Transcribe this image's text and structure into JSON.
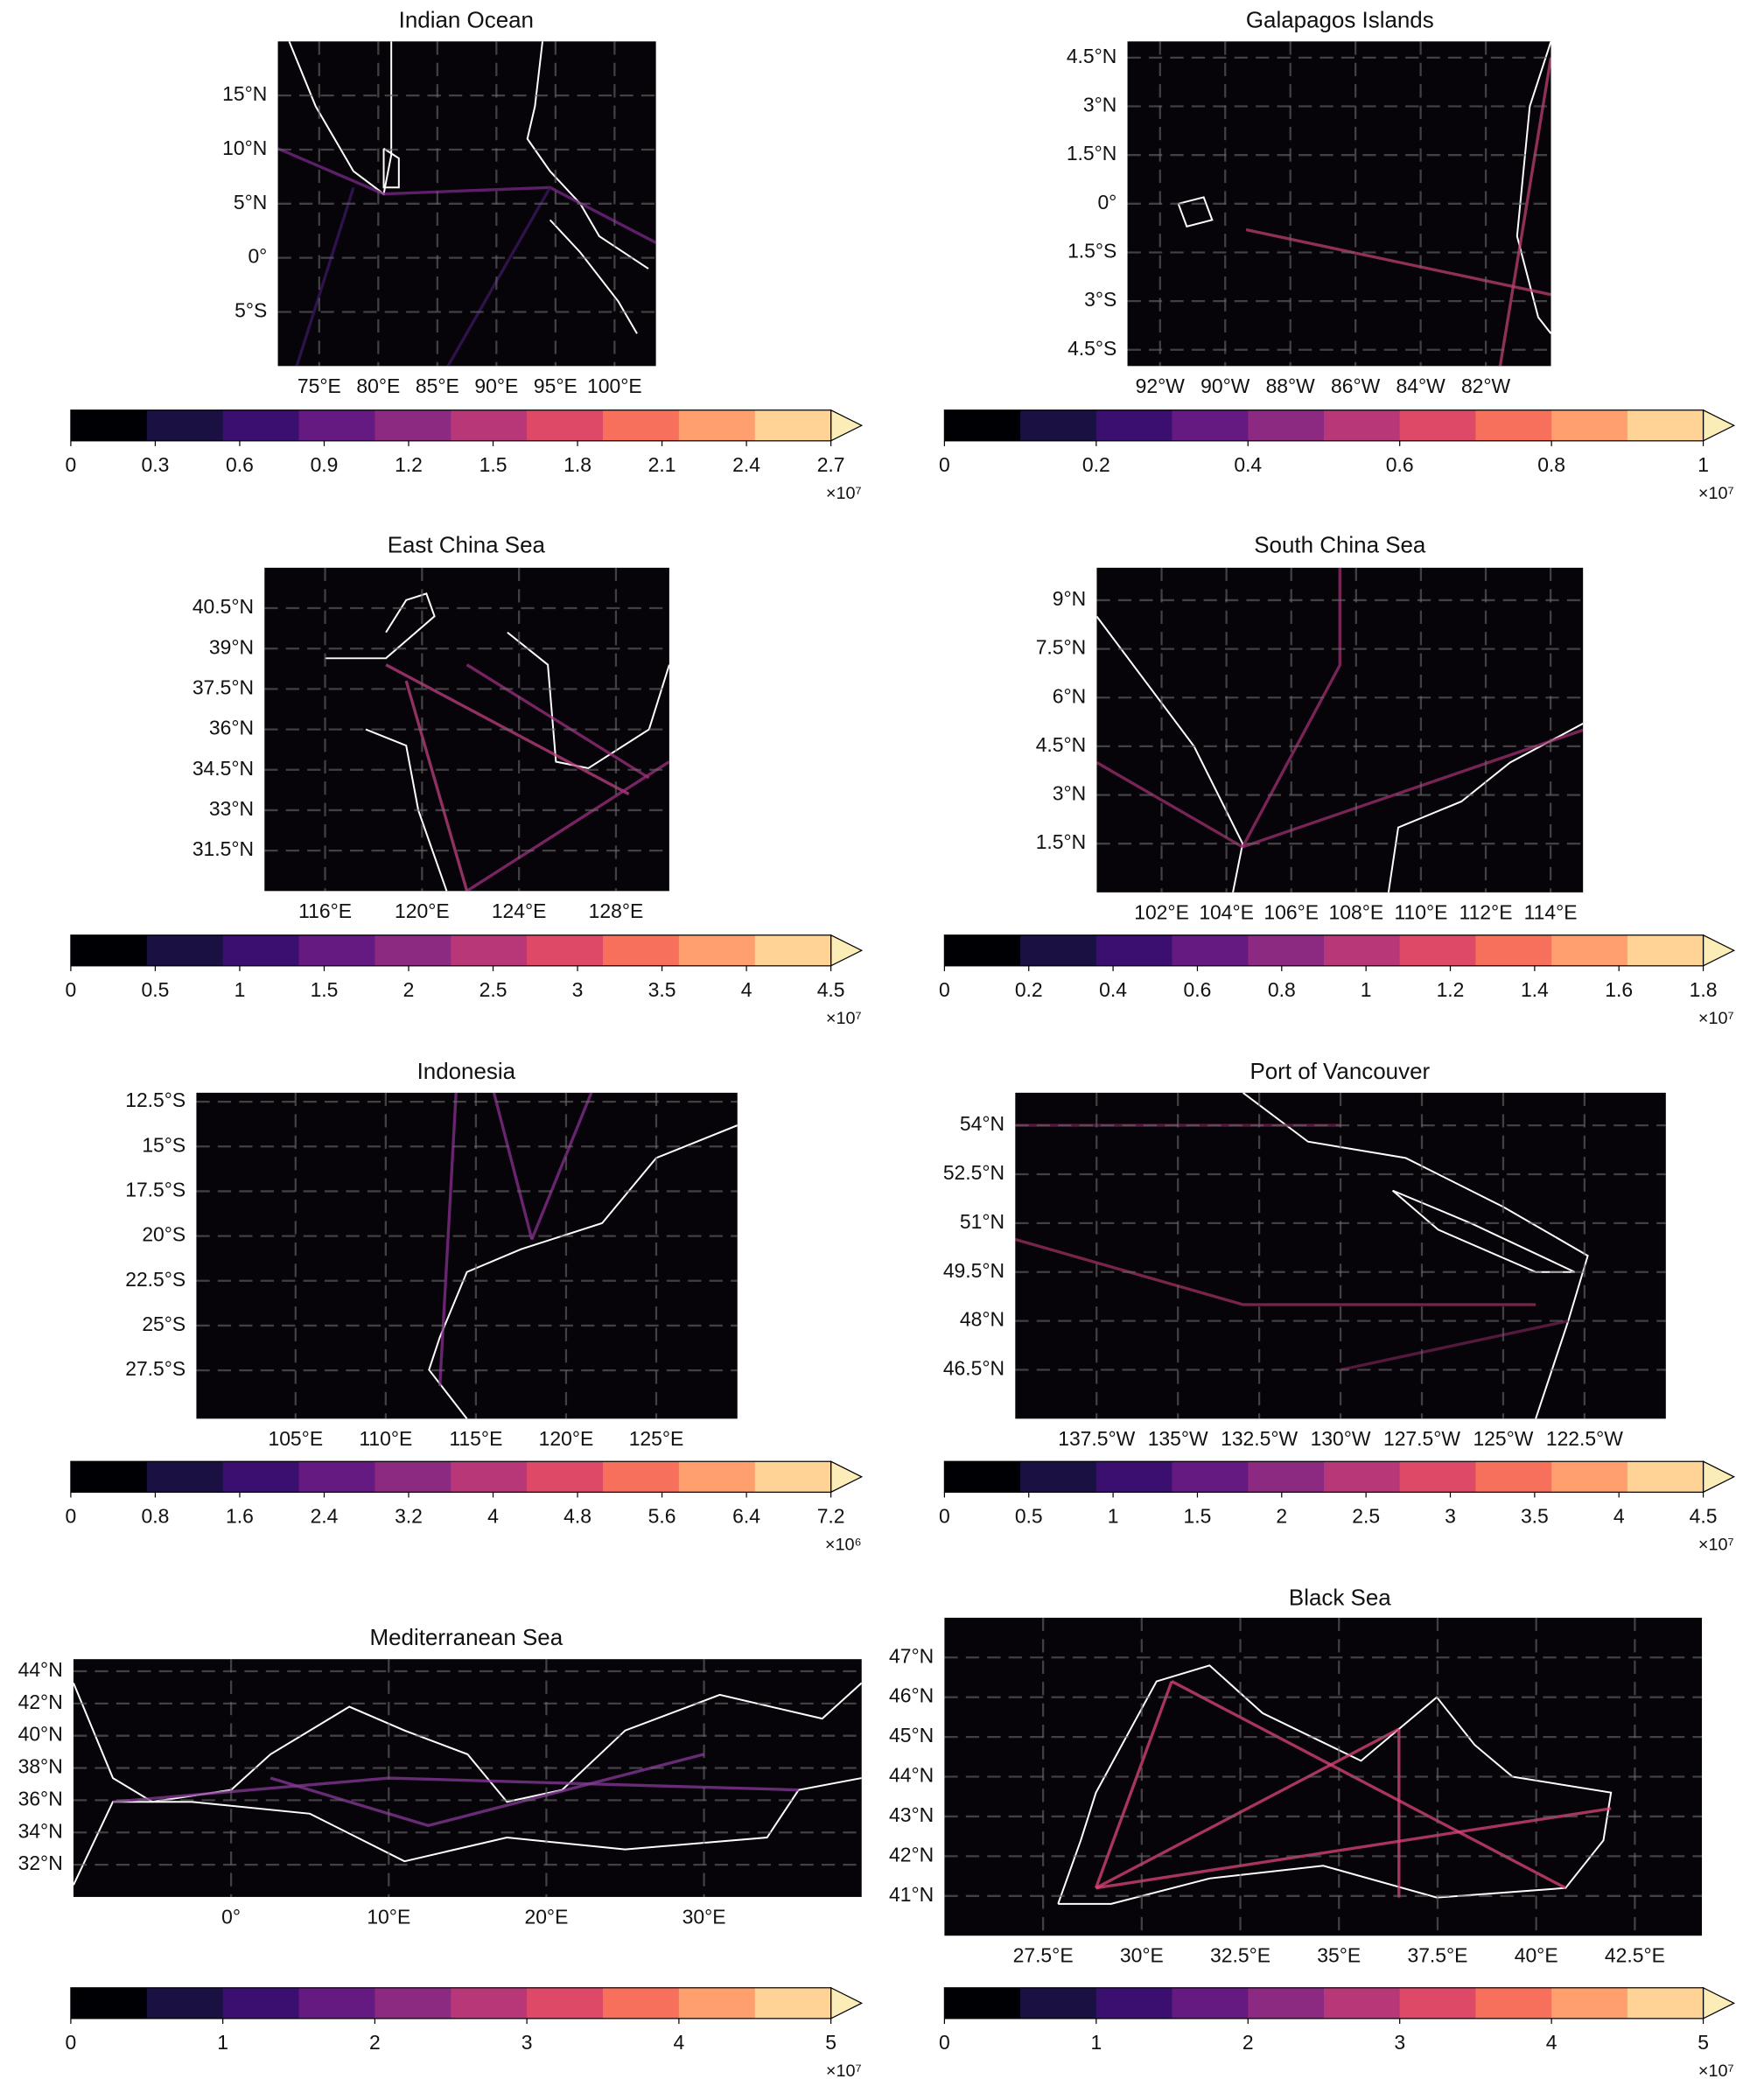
{
  "chart_data": [
    {
      "type": "map",
      "title": "Indian Ocean",
      "xlim": [
        71.5,
        103.5
      ],
      "ylim": [
        -10,
        20
      ],
      "grid": true,
      "xticks": [
        {
          "value": 75,
          "label": "75°E"
        },
        {
          "value": 80,
          "label": "80°E"
        },
        {
          "value": 85,
          "label": "85°E"
        },
        {
          "value": 90,
          "label": "90°E"
        },
        {
          "value": 95,
          "label": "95°E"
        },
        {
          "value": 100,
          "label": "100°E"
        }
      ],
      "yticks": [
        {
          "value": 15,
          "label": "15°N"
        },
        {
          "value": 10,
          "label": "10°N"
        },
        {
          "value": 5,
          "label": "5°N"
        },
        {
          "value": 0,
          "label": "0°"
        },
        {
          "value": -5,
          "label": "5°S"
        }
      ],
      "colorbar": {
        "lim": [
          0,
          2.7
        ],
        "ticks": [
          0,
          0.3,
          0.6,
          0.9,
          1.2,
          1.5,
          1.8,
          2.1,
          2.4,
          2.7
        ],
        "scale_label": "×10⁷",
        "colors": [
          "#000004",
          "#1a1042",
          "#3b0f70",
          "#641a80",
          "#8c2981",
          "#b73779",
          "#de4968",
          "#f7705c",
          "#fe9f6d",
          "#fed395"
        ],
        "extend_color": "#fcecb8"
      }
    },
    {
      "type": "map",
      "title": "Galapagos Islands",
      "xlim": [
        -93,
        -80
      ],
      "ylim": [
        -5,
        5
      ],
      "grid": true,
      "xticks": [
        {
          "value": -92,
          "label": "92°W"
        },
        {
          "value": -90,
          "label": "90°W"
        },
        {
          "value": -88,
          "label": "88°W"
        },
        {
          "value": -86,
          "label": "86°W"
        },
        {
          "value": -84,
          "label": "84°W"
        },
        {
          "value": -82,
          "label": "82°W"
        }
      ],
      "yticks": [
        {
          "value": 4.5,
          "label": "4.5°N"
        },
        {
          "value": 3,
          "label": "3°N"
        },
        {
          "value": 1.5,
          "label": "1.5°N"
        },
        {
          "value": 0,
          "label": "0°"
        },
        {
          "value": -1.5,
          "label": "1.5°S"
        },
        {
          "value": -3,
          "label": "3°S"
        },
        {
          "value": -4.5,
          "label": "4.5°S"
        }
      ],
      "colorbar": {
        "lim": [
          0,
          1
        ],
        "ticks": [
          0,
          0.2,
          0.4,
          0.6,
          0.8,
          1
        ],
        "scale_label": "×10⁷",
        "colors": [
          "#000004",
          "#1a1042",
          "#3b0f70",
          "#641a80",
          "#8c2981",
          "#b73779",
          "#de4968",
          "#f7705c",
          "#fe9f6d",
          "#fed395"
        ],
        "extend_color": "#fcecb8"
      }
    },
    {
      "type": "map",
      "title": "East China Sea",
      "xlim": [
        113.5,
        130.2
      ],
      "ylim": [
        30,
        42
      ],
      "grid": true,
      "xticks": [
        {
          "value": 116,
          "label": "116°E"
        },
        {
          "value": 120,
          "label": "120°E"
        },
        {
          "value": 124,
          "label": "124°E"
        },
        {
          "value": 128,
          "label": "128°E"
        }
      ],
      "yticks": [
        {
          "value": 40.5,
          "label": "40.5°N"
        },
        {
          "value": 39,
          "label": "39°N"
        },
        {
          "value": 37.5,
          "label": "37.5°N"
        },
        {
          "value": 36,
          "label": "36°N"
        },
        {
          "value": 34.5,
          "label": "34.5°N"
        },
        {
          "value": 33,
          "label": "33°N"
        },
        {
          "value": 31.5,
          "label": "31.5°N"
        }
      ],
      "colorbar": {
        "lim": [
          0,
          4.5
        ],
        "ticks": [
          0,
          0.5,
          1,
          1.5,
          2,
          2.5,
          3,
          3.5,
          4,
          4.5
        ],
        "scale_label": "×10⁷",
        "colors": [
          "#000004",
          "#1a1042",
          "#3b0f70",
          "#641a80",
          "#8c2981",
          "#b73779",
          "#de4968",
          "#f7705c",
          "#fe9f6d",
          "#fed395"
        ],
        "extend_color": "#fcecb8"
      }
    },
    {
      "type": "map",
      "title": "South China Sea",
      "xlim": [
        100,
        115
      ],
      "ylim": [
        0,
        10
      ],
      "grid": true,
      "xticks": [
        {
          "value": 102,
          "label": "102°E"
        },
        {
          "value": 104,
          "label": "104°E"
        },
        {
          "value": 106,
          "label": "106°E"
        },
        {
          "value": 108,
          "label": "108°E"
        },
        {
          "value": 110,
          "label": "110°E"
        },
        {
          "value": 112,
          "label": "112°E"
        },
        {
          "value": 114,
          "label": "114°E"
        }
      ],
      "yticks": [
        {
          "value": 9,
          "label": "9°N"
        },
        {
          "value": 7.5,
          "label": "7.5°N"
        },
        {
          "value": 6,
          "label": "6°N"
        },
        {
          "value": 4.5,
          "label": "4.5°N"
        },
        {
          "value": 3,
          "label": "3°N"
        },
        {
          "value": 1.5,
          "label": "1.5°N"
        }
      ],
      "colorbar": {
        "lim": [
          0,
          1.8
        ],
        "ticks": [
          0,
          0.2,
          0.4,
          0.6,
          0.8,
          1,
          1.2,
          1.4,
          1.6,
          1.8
        ],
        "scale_label": "×10⁷",
        "colors": [
          "#000004",
          "#1a1042",
          "#3b0f70",
          "#641a80",
          "#8c2981",
          "#b73779",
          "#de4968",
          "#f7705c",
          "#fe9f6d",
          "#fed395"
        ],
        "extend_color": "#fcecb8"
      }
    },
    {
      "type": "map",
      "title": "Indonesia",
      "xlim": [
        99.5,
        129.5
      ],
      "ylim": [
        -30.2,
        -12
      ],
      "grid": true,
      "xticks": [
        {
          "value": 105,
          "label": "105°E"
        },
        {
          "value": 110,
          "label": "110°E"
        },
        {
          "value": 115,
          "label": "115°E"
        },
        {
          "value": 120,
          "label": "120°E"
        },
        {
          "value": 125,
          "label": "125°E"
        }
      ],
      "yticks": [
        {
          "value": -12.5,
          "label": "12.5°S"
        },
        {
          "value": -15,
          "label": "15°S"
        },
        {
          "value": -17.5,
          "label": "17.5°S"
        },
        {
          "value": -20,
          "label": "20°S"
        },
        {
          "value": -22.5,
          "label": "22.5°S"
        },
        {
          "value": -25,
          "label": "25°S"
        },
        {
          "value": -27.5,
          "label": "27.5°S"
        }
      ],
      "colorbar": {
        "lim": [
          0,
          7.2
        ],
        "ticks": [
          0,
          0.8,
          1.6,
          2.4,
          3.2,
          4,
          4.8,
          5.6,
          6.4,
          7.2
        ],
        "scale_label": "×10⁶",
        "colors": [
          "#000004",
          "#1a1042",
          "#3b0f70",
          "#641a80",
          "#8c2981",
          "#b73779",
          "#de4968",
          "#f7705c",
          "#fe9f6d",
          "#fed395"
        ],
        "extend_color": "#fcecb8"
      }
    },
    {
      "type": "map",
      "title": "Port of Vancouver",
      "xlim": [
        -140,
        -120
      ],
      "ylim": [
        45,
        55
      ],
      "grid": true,
      "xticks": [
        {
          "value": -137.5,
          "label": "137.5°W"
        },
        {
          "value": -135,
          "label": "135°W"
        },
        {
          "value": -132.5,
          "label": "132.5°W"
        },
        {
          "value": -130,
          "label": "130°W"
        },
        {
          "value": -127.5,
          "label": "127.5°W"
        },
        {
          "value": -125,
          "label": "125°W"
        },
        {
          "value": -122.5,
          "label": "122.5°W"
        }
      ],
      "yticks": [
        {
          "value": 54,
          "label": "54°N"
        },
        {
          "value": 52.5,
          "label": "52.5°N"
        },
        {
          "value": 51,
          "label": "51°N"
        },
        {
          "value": 49.5,
          "label": "49.5°N"
        },
        {
          "value": 48,
          "label": "48°N"
        },
        {
          "value": 46.5,
          "label": "46.5°N"
        }
      ],
      "colorbar": {
        "lim": [
          0,
          4.5
        ],
        "ticks": [
          0,
          0.5,
          1,
          1.5,
          2,
          2.5,
          3,
          3.5,
          4,
          4.5
        ],
        "scale_label": "×10⁷",
        "colors": [
          "#000004",
          "#1a1042",
          "#3b0f70",
          "#641a80",
          "#8c2981",
          "#b73779",
          "#de4968",
          "#f7705c",
          "#fe9f6d",
          "#fed395"
        ],
        "extend_color": "#fcecb8"
      }
    },
    {
      "type": "map",
      "title": "Mediterranean Sea",
      "xlim": [
        -10,
        40
      ],
      "ylim": [
        30,
        44.75
      ],
      "grid": true,
      "xticks": [
        {
          "value": 0,
          "label": "0°"
        },
        {
          "value": 10,
          "label": "10°E"
        },
        {
          "value": 20,
          "label": "20°E"
        },
        {
          "value": 30,
          "label": "30°E"
        }
      ],
      "yticks": [
        {
          "value": 44,
          "label": "44°N"
        },
        {
          "value": 42,
          "label": "42°N"
        },
        {
          "value": 40,
          "label": "40°N"
        },
        {
          "value": 38,
          "label": "38°N"
        },
        {
          "value": 36,
          "label": "36°N"
        },
        {
          "value": 34,
          "label": "34°N"
        },
        {
          "value": 32,
          "label": "32°N"
        }
      ],
      "colorbar": {
        "lim": [
          0,
          5
        ],
        "ticks": [
          0,
          1,
          2,
          3,
          4,
          5
        ],
        "scale_label": "×10⁷",
        "colors": [
          "#000004",
          "#1a1042",
          "#3b0f70",
          "#641a80",
          "#8c2981",
          "#b73779",
          "#de4968",
          "#f7705c",
          "#fe9f6d",
          "#fed395"
        ],
        "extend_color": "#fcecb8"
      }
    },
    {
      "type": "map",
      "title": "Black Sea",
      "xlim": [
        25,
        44.2
      ],
      "ylim": [
        40,
        48
      ],
      "grid": true,
      "xticks": [
        {
          "value": 27.5,
          "label": "27.5°E"
        },
        {
          "value": 30,
          "label": "30°E"
        },
        {
          "value": 32.5,
          "label": "32.5°E"
        },
        {
          "value": 35,
          "label": "35°E"
        },
        {
          "value": 37.5,
          "label": "37.5°E"
        },
        {
          "value": 40,
          "label": "40°E"
        },
        {
          "value": 42.5,
          "label": "42.5°E"
        }
      ],
      "yticks": [
        {
          "value": 47,
          "label": "47°N"
        },
        {
          "value": 46,
          "label": "46°N"
        },
        {
          "value": 45,
          "label": "45°N"
        },
        {
          "value": 44,
          "label": "44°N"
        },
        {
          "value": 43,
          "label": "43°N"
        },
        {
          "value": 42,
          "label": "42°N"
        },
        {
          "value": 41,
          "label": "41°N"
        }
      ],
      "colorbar": {
        "lim": [
          0,
          5
        ],
        "ticks": [
          0,
          1,
          2,
          3,
          4,
          5
        ],
        "scale_label": "×10⁷",
        "colors": [
          "#000004",
          "#1a1042",
          "#3b0f70",
          "#641a80",
          "#8c2981",
          "#b73779",
          "#de4968",
          "#f7705c",
          "#fe9f6d",
          "#fed395"
        ],
        "extend_color": "#fcecb8"
      }
    }
  ]
}
